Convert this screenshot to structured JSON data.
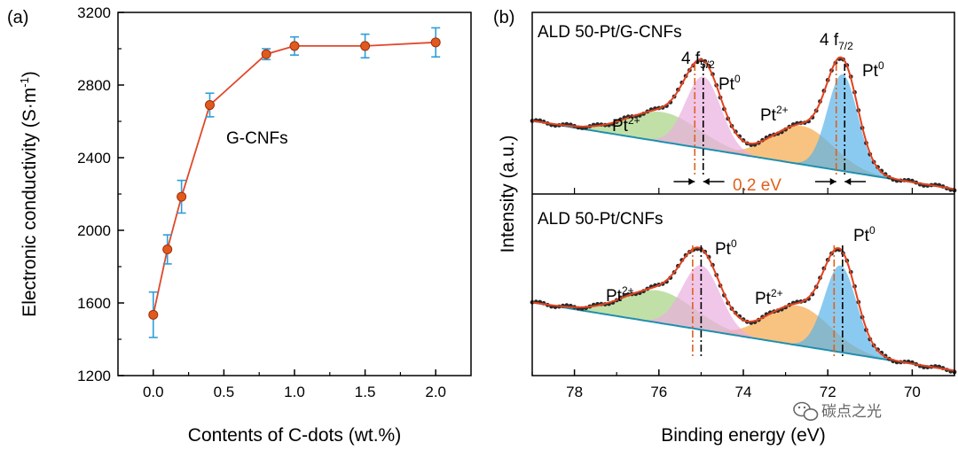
{
  "chart_data": [
    {
      "type": "line",
      "panel_label": "(a)",
      "xlabel": "Contents of C-dots (wt.%)",
      "ylabel_prefix": "Electronic conductivity (S·m",
      "ylabel_sup": "-1",
      "ylabel_suffix": ")",
      "annotation": "G-CNFs",
      "xlim": [
        -0.25,
        2.25
      ],
      "ylim": [
        1200,
        3200
      ],
      "xticks": [
        0.0,
        0.5,
        1.0,
        1.5,
        2.0
      ],
      "xtick_labels": [
        "0.0",
        "0.5",
        "1.0",
        "1.5",
        "2.0"
      ],
      "yticks": [
        1200,
        1600,
        2000,
        2400,
        2800,
        3200
      ],
      "ytick_labels": [
        "1200",
        "1600",
        "2000",
        "2400",
        "2800",
        "3200"
      ],
      "series": [
        {
          "name": "G-CNFs",
          "x": [
            0.0,
            0.1,
            0.2,
            0.4,
            0.8,
            1.0,
            1.5,
            2.0
          ],
          "y": [
            1535,
            1895,
            2185,
            2690,
            2970,
            3015,
            3015,
            3035
          ],
          "error": [
            125,
            80,
            90,
            65,
            30,
            50,
            65,
            80
          ]
        }
      ],
      "colors": {
        "line": "#e0482a",
        "marker": "#e05a1c",
        "error": "#2e9fd8"
      }
    },
    {
      "type": "line",
      "panel_label": "(b)",
      "xlabel": "Binding energy (eV)",
      "ylabel": "Intensity (a.u.)",
      "xlim": [
        79,
        69
      ],
      "xticks": [
        78,
        76,
        74,
        72,
        70
      ],
      "xtick_labels": [
        "78",
        "76",
        "74",
        "72",
        "70"
      ],
      "top": {
        "title": "ALD 50-Pt/G-CNFs",
        "peak_label_1": "4 f",
        "peak_label_1_sub": "5/2",
        "peak_label_2": "4 f",
        "peak_label_2_sub": "7/2",
        "pt0_label": "Pt",
        "pt0_sup": "0",
        "pt2_label": "Pt",
        "pt2_sup": "2+",
        "shift_label": "0.2 eV",
        "peaks": [
          {
            "name": "Pt0 4f7/2",
            "center": 71.65,
            "height": 0.78,
            "width": 0.36
          },
          {
            "name": "Pt0 4f5/2",
            "center": 74.95,
            "height": 0.58,
            "width": 0.42
          },
          {
            "name": "Pt2+ 4f7/2",
            "center": 72.6,
            "height": 0.31,
            "width": 0.72
          },
          {
            "name": "Pt2+ 4f5/2",
            "center": 75.9,
            "height": 0.24,
            "width": 0.85
          }
        ],
        "markers": [
          74.95,
          75.15,
          71.6,
          71.8
        ]
      },
      "bottom": {
        "title": "ALD 50-Pt/CNFs",
        "pt0_label": "Pt",
        "pt0_sup": "0",
        "pt2_label": "Pt",
        "pt2_sup": "2+",
        "peaks": [
          {
            "name": "Pt0 4f7/2",
            "center": 71.7,
            "height": 0.7,
            "width": 0.38
          },
          {
            "name": "Pt0 4f5/2",
            "center": 75.0,
            "height": 0.52,
            "width": 0.45
          },
          {
            "name": "Pt2+ 4f7/2",
            "center": 72.7,
            "height": 0.32,
            "width": 0.75
          },
          {
            "name": "Pt2+ 4f5/2",
            "center": 76.0,
            "height": 0.26,
            "width": 0.85
          }
        ],
        "markers": [
          75.0,
          75.2,
          71.65,
          71.85
        ]
      },
      "colors": {
        "pt0": "#5ab3ea",
        "pt0_5": "#e9aee0",
        "pt2": "#f5a94a",
        "pt2_5": "#a7d382",
        "envelope": "#e3431f",
        "background": "#1f8fae",
        "data": "#2a2a2a",
        "shift_text": "#e0601c",
        "dash_orange": "#e0601c"
      }
    }
  ],
  "watermark": {
    "text": "碳点之光",
    "icon": "wechat-icon"
  }
}
